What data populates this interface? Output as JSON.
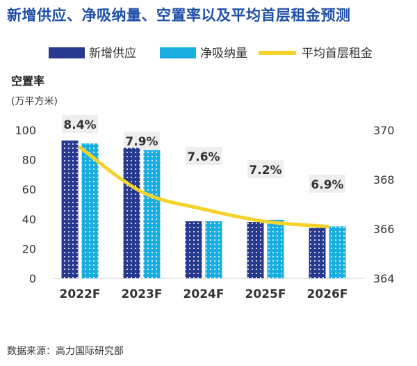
{
  "title": "新增供应、净吸纳量、空置率以及平均首层租金预测",
  "source": "数据来源：高力国际研究部",
  "chart_data": {
    "type": "bar",
    "categories": [
      "2022F",
      "2023F",
      "2024F",
      "2025F",
      "2026F"
    ],
    "series": [
      {
        "name": "新增供应",
        "type": "bar",
        "axis": "left",
        "color": "#283a8f",
        "values": [
          93,
          88,
          38.5,
          38,
          34
        ]
      },
      {
        "name": "净吸纳量",
        "type": "bar",
        "axis": "left",
        "color": "#1aaee0",
        "values": [
          91,
          86.5,
          38.5,
          39.5,
          35
        ]
      },
      {
        "name": "平均首层租金",
        "type": "line",
        "axis": "right",
        "color": "#f3d32a",
        "values": [
          369.3,
          367.5,
          366.8,
          366.3,
          366.1
        ]
      }
    ],
    "vacancy_labels": [
      "8.4%",
      "7.9%",
      "7.6%",
      "7.2%",
      "6.9%"
    ],
    "ylabel": "空置率",
    "yunit": "(万平方米)",
    "ylim": [
      0,
      100
    ],
    "yticks": [
      0,
      20,
      40,
      60,
      80,
      100
    ],
    "y2lim": [
      364,
      370
    ],
    "y2ticks": [
      364,
      366,
      368,
      370
    ],
    "legend_position": "top"
  }
}
